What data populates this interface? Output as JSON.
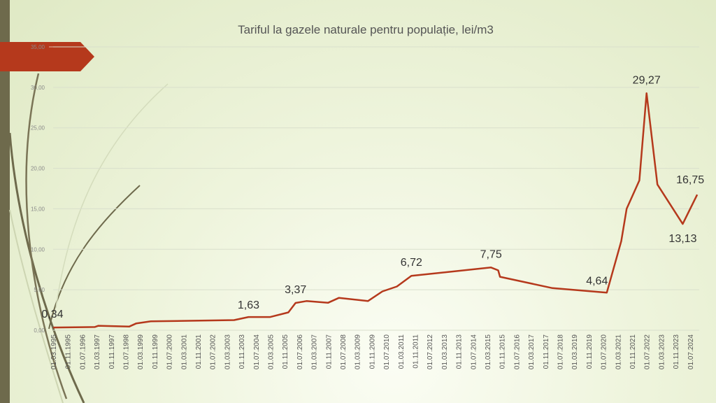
{
  "colors": {
    "series": "#b5391c",
    "banner": "#b5391c",
    "side_bar": "#6e6a4c",
    "grid": "#d9dfcc",
    "background": "#eef4dc"
  },
  "chart_data": {
    "type": "line",
    "title": "Tariful la gazele naturale pentru populație, lei/m3",
    "xlabel": "",
    "ylabel": "",
    "ylim": [
      0,
      35
    ],
    "y_ticks": [
      "0,00",
      "5,00",
      "10,00",
      "15,00",
      "20,00",
      "25,00",
      "30,00",
      "35,00"
    ],
    "grid": "horizontal",
    "legend": "none",
    "x_tick_labels": [
      "01.03.1995",
      "01.11.1995",
      "01.07.1996",
      "01.03.1997",
      "01.11.1997",
      "01.07.1998",
      "01.03.1999",
      "01.11.1999",
      "01.07.2000",
      "01.03.2001",
      "01.11.2001",
      "01.07.2002",
      "01.03.2003",
      "01.11.2003",
      "01.07.2004",
      "01.03.2005",
      "01.11.2005",
      "01.07.2006",
      "01.03.2007",
      "01.11.2007",
      "01.07.2008",
      "01.03.2009",
      "01.11.2009",
      "01.07.2010",
      "01.03.2011",
      "01.11.2011",
      "01.07.2012",
      "01.03.2013",
      "01.11.2013",
      "01.07.2014",
      "01.03.2015",
      "01.11.2015",
      "01.07.2016",
      "01.03.2017",
      "01.11.2017",
      "01.07.2018",
      "01.03.2019",
      "01.11.2019",
      "01.07.2020",
      "01.03.2021",
      "01.11.2021",
      "01.07.2022",
      "01.03.2023",
      "01.11.2023",
      "01.07.2024"
    ],
    "series": [
      {
        "points": [
          {
            "x": "1995-03",
            "y": 0.34
          },
          {
            "x": "1997-02",
            "y": 0.4
          },
          {
            "x": "1997-04",
            "y": 0.55
          },
          {
            "x": "1998-09",
            "y": 0.45
          },
          {
            "x": "1999-01",
            "y": 0.85
          },
          {
            "x": "1999-09",
            "y": 1.1
          },
          {
            "x": "2003-07",
            "y": 1.25
          },
          {
            "x": "2004-03",
            "y": 1.63
          },
          {
            "x": "2005-03",
            "y": 1.63
          },
          {
            "x": "2006-01",
            "y": 2.2
          },
          {
            "x": "2006-05",
            "y": 3.37
          },
          {
            "x": "2006-11",
            "y": 3.6
          },
          {
            "x": "2007-11",
            "y": 3.4
          },
          {
            "x": "2008-05",
            "y": 4.0
          },
          {
            "x": "2009-09",
            "y": 3.6
          },
          {
            "x": "2010-05",
            "y": 4.8
          },
          {
            "x": "2011-01",
            "y": 5.4
          },
          {
            "x": "2011-09",
            "y": 6.72
          },
          {
            "x": "2015-05",
            "y": 7.75
          },
          {
            "x": "2015-09",
            "y": 7.4
          },
          {
            "x": "2015-10",
            "y": 6.6
          },
          {
            "x": "2018-03",
            "y": 5.2
          },
          {
            "x": "2020-09",
            "y": 4.64
          },
          {
            "x": "2021-05",
            "y": 11.0
          },
          {
            "x": "2021-08",
            "y": 15.0
          },
          {
            "x": "2022-03",
            "y": 18.5
          },
          {
            "x": "2022-07",
            "y": 29.27
          },
          {
            "x": "2023-01",
            "y": 18.0
          },
          {
            "x": "2024-03",
            "y": 13.13
          },
          {
            "x": "2024-11",
            "y": 16.75
          }
        ],
        "data_labels": [
          {
            "x": "1995-03",
            "y": 0.34,
            "text": "0,34"
          },
          {
            "x": "2004-03",
            "y": 1.63,
            "text": "1,63"
          },
          {
            "x": "2006-05",
            "y": 3.37,
            "text": "3,37"
          },
          {
            "x": "2011-09",
            "y": 6.72,
            "text": "6,72"
          },
          {
            "x": "2015-05",
            "y": 7.75,
            "text": "7,75"
          },
          {
            "x": "2020-09",
            "y": 4.64,
            "text": "4,64"
          },
          {
            "x": "2022-07",
            "y": 29.27,
            "text": "29,27"
          },
          {
            "x": "2024-03",
            "y": 13.13,
            "text": "13,13"
          },
          {
            "x": "2024-11",
            "y": 16.75,
            "text": "16,75"
          }
        ]
      }
    ]
  }
}
